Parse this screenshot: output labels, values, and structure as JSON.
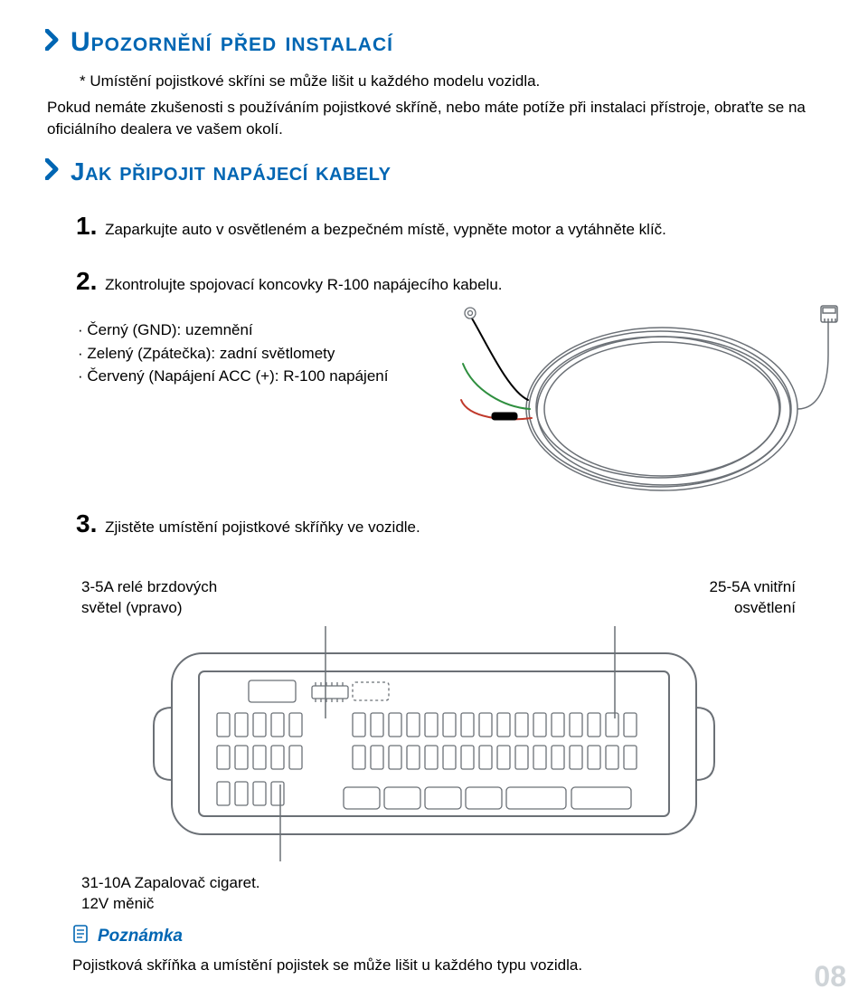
{
  "colors": {
    "heading": "#0066b3",
    "text": "#000000",
    "pageNum": "#cfd4d8",
    "svgStroke": "#6b7076",
    "wireBlack": "#000000",
    "wireGreen": "#2f8f3f",
    "wireRed": "#c0392b"
  },
  "heading1": "Upozornění před instalací",
  "starNote": "* Umístění pojistkové skříni se může lišit u každého modelu vozidla.",
  "para1": "Pokud nemáte zkušenosti s používáním pojistkové skříně, nebo máte potíže při instalaci přístroje, obraťte se na oficiálního dealera ve vašem okolí.",
  "heading2": "Jak připojit napájecí kabely",
  "steps": {
    "s1": {
      "num": "1.",
      "text": "Zaparkujte auto v osvětleném a bezpečném místě, vypněte motor a vytáhněte klíč."
    },
    "s2": {
      "num": "2.",
      "text": "Zkontrolujte spojovací koncovky R-100 napájecího kabelu."
    },
    "s3": {
      "num": "3.",
      "text": "Zjistěte umístění pojistkové skříňky ve vozidle."
    }
  },
  "bullets": {
    "b1": "· Černý (GND): uzemnění",
    "b2": "· Zelený (Zpátečka): zadní světlomety",
    "b3": "· Červený (Napájení ACC (+): R-100 napájení"
  },
  "fuseLabels": {
    "topLeft1": "3-5A relé brzdových",
    "topLeft2": "světel (vpravo)",
    "topRight1": "25-5A vnitřní",
    "topRight2": "osvětlení",
    "bottom1": "31-10A Zapalovač cigaret.",
    "bottom2": "12V měnič"
  },
  "noteHeading": "Poznámka",
  "noteText": "Pojistková skříňka a umístění pojistek se může lišit u každého typu vozidla.",
  "pageNum": "08"
}
